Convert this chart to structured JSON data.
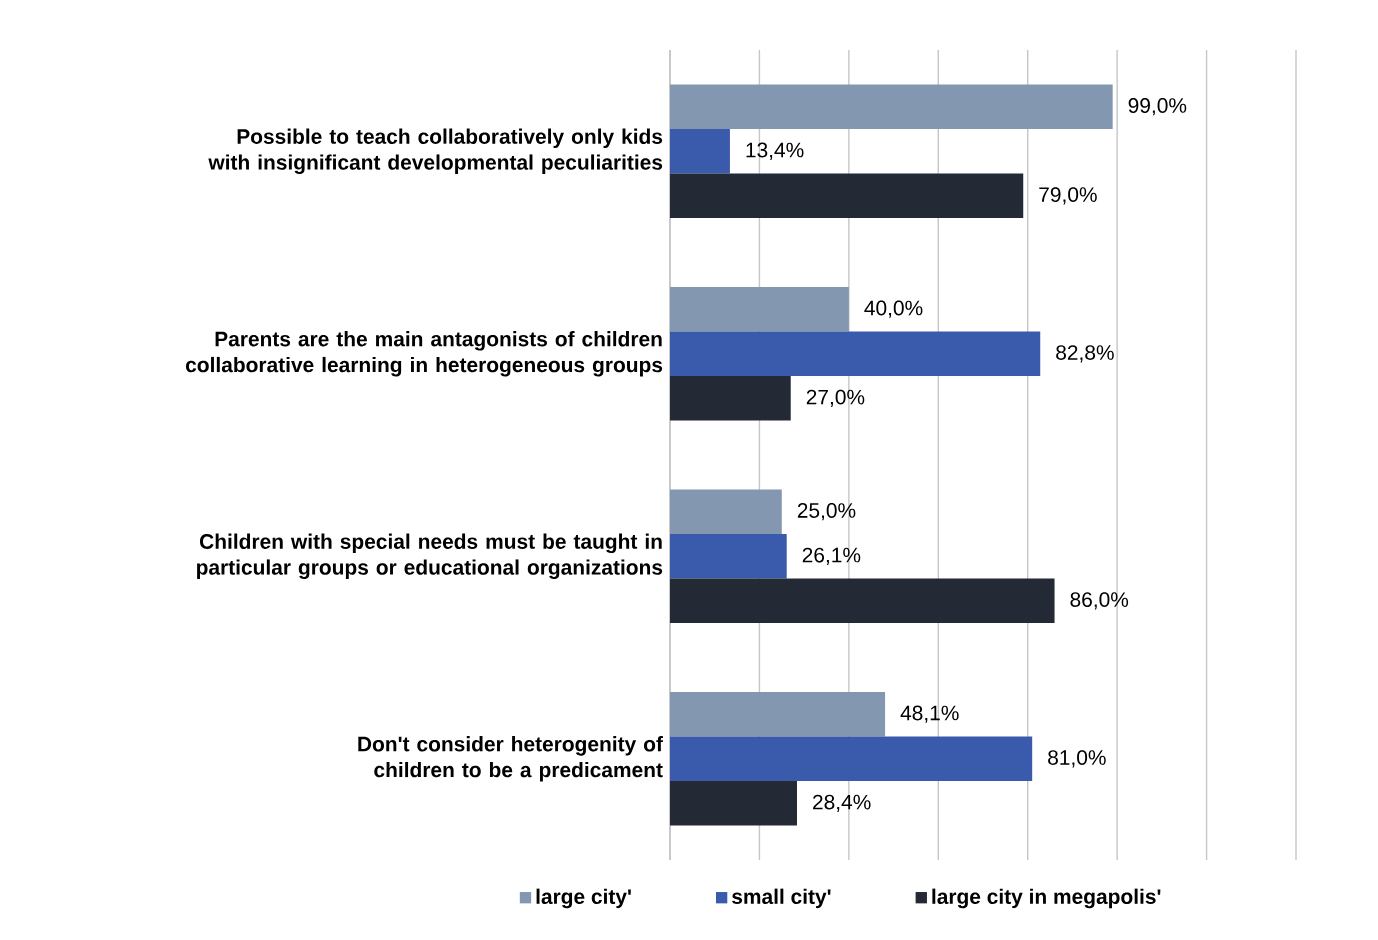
{
  "chart_data": {
    "type": "bar",
    "orientation": "horizontal",
    "categories": [
      "Possible to teach collaboratively only kids with insignificant developmental peculiarities",
      "Parents are the main antagonists of children collaborative learning in heterogeneous groups",
      "Children with special needs must be taught in particular groups or educational organizations",
      "Don't consider heterogenity of children to be a predicament"
    ],
    "series": [
      {
        "name": "large city'",
        "color": "#8497b0",
        "values": [
          99.0,
          40.0,
          25.0,
          48.1
        ],
        "value_labels": [
          "99,0%",
          "40,0%",
          "25,0%",
          "48,1%"
        ]
      },
      {
        "name": "small city'",
        "color": "#3a5bab",
        "values": [
          13.4,
          82.8,
          26.1,
          81.0
        ],
        "value_labels": [
          "13,4%",
          "82,8%",
          "26,1%",
          "81,0%"
        ]
      },
      {
        "name": "large city in megapolis'",
        "color": "#232a36",
        "values": [
          79.0,
          27.0,
          86.0,
          28.4
        ],
        "value_labels": [
          "79,0%",
          "27,0%",
          "86,0%",
          "28,4%"
        ]
      }
    ],
    "grid": "x",
    "legend": "bottom",
    "tick_labels": "y"
  }
}
